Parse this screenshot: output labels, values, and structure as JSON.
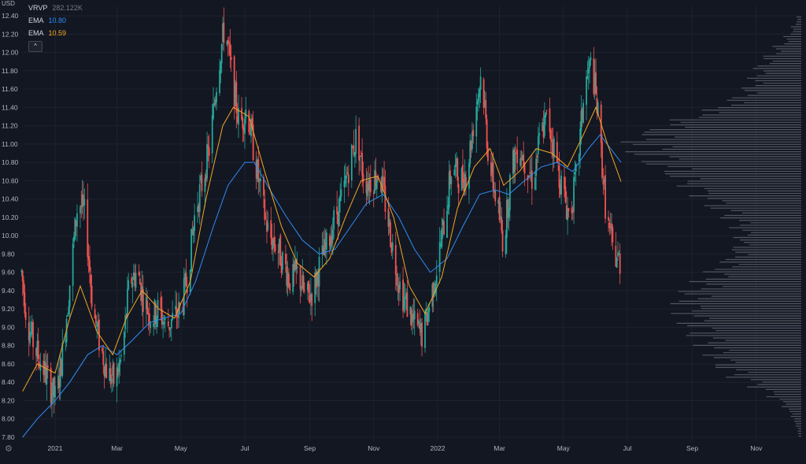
{
  "axis": {
    "currency_label": "USD"
  },
  "legend": {
    "vrvp_label": "VRVP",
    "vrvp_value": "282.122K",
    "ema1_label": "EMA",
    "ema1_value": "10.80",
    "ema2_label": "EMA",
    "ema2_value": "10.59",
    "collapse_glyph": "^"
  },
  "colors": {
    "up": "#26a69a",
    "down": "#ef5350",
    "ema_fast": "#f5a623",
    "ema_slow": "#2f8df5",
    "volume_profile": "#5d606b",
    "background": "#131722"
  },
  "chart_data": {
    "type": "candlestick",
    "title": "",
    "ylim": [
      7.75,
      12.45
    ],
    "y_ticks": [
      "7.80",
      "8.00",
      "8.20",
      "8.40",
      "8.60",
      "8.80",
      "9.00",
      "9.20",
      "9.40",
      "9.60",
      "9.80",
      "10.00",
      "10.20",
      "10.40",
      "10.60",
      "10.80",
      "11.00",
      "11.20",
      "11.40",
      "11.60",
      "11.80",
      "12.00",
      "12.20",
      "12.40"
    ],
    "x_ticks": [
      "2021",
      "Mar",
      "May",
      "Jul",
      "Sep",
      "Nov",
      "2022",
      "Mar",
      "May",
      "Jul",
      "Sep",
      "Nov"
    ],
    "close_path": [
      [
        "2020-11-30",
        9.6
      ],
      [
        "2020-12-05",
        9.1
      ],
      [
        "2020-12-12",
        8.8
      ],
      [
        "2020-12-19",
        8.6
      ],
      [
        "2020-12-26",
        8.4
      ],
      [
        "2021-01-02",
        8.2
      ],
      [
        "2021-01-09",
        8.8
      ],
      [
        "2021-01-16",
        9.6
      ],
      [
        "2021-01-23",
        10.4
      ],
      [
        "2021-01-30",
        10.2
      ],
      [
        "2021-02-06",
        9.2
      ],
      [
        "2021-02-13",
        8.8
      ],
      [
        "2021-02-20",
        8.5
      ],
      [
        "2021-02-27",
        8.4
      ],
      [
        "2021-03-06",
        8.7
      ],
      [
        "2021-03-13",
        9.5
      ],
      [
        "2021-03-20",
        9.6
      ],
      [
        "2021-03-27",
        9.3
      ],
      [
        "2021-04-03",
        9.1
      ],
      [
        "2021-04-10",
        9.2
      ],
      [
        "2021-04-17",
        9.0
      ],
      [
        "2021-04-24",
        9.1
      ],
      [
        "2021-05-01",
        9.2
      ],
      [
        "2021-05-08",
        9.6
      ],
      [
        "2021-05-15",
        10.3
      ],
      [
        "2021-05-22",
        10.6
      ],
      [
        "2021-05-29",
        11.0
      ],
      [
        "2021-06-05",
        11.8
      ],
      [
        "2021-06-12",
        12.3
      ],
      [
        "2021-06-19",
        11.7
      ],
      [
        "2021-06-26",
        11.2
      ],
      [
        "2021-07-03",
        11.4
      ],
      [
        "2021-07-10",
        10.9
      ],
      [
        "2021-07-17",
        10.4
      ],
      [
        "2021-07-24",
        10.0
      ],
      [
        "2021-07-31",
        9.9
      ],
      [
        "2021-08-07",
        9.7
      ],
      [
        "2021-08-14",
        9.5
      ],
      [
        "2021-08-21",
        9.6
      ],
      [
        "2021-08-28",
        9.3
      ],
      [
        "2021-09-04",
        9.4
      ],
      [
        "2021-09-11",
        9.7
      ],
      [
        "2021-09-18",
        9.9
      ],
      [
        "2021-09-25",
        10.2
      ],
      [
        "2021-10-02",
        10.4
      ],
      [
        "2021-10-09",
        10.8
      ],
      [
        "2021-10-16",
        11.1
      ],
      [
        "2021-10-23",
        10.6
      ],
      [
        "2021-10-30",
        10.6
      ],
      [
        "2021-11-06",
        10.7
      ],
      [
        "2021-11-13",
        10.3
      ],
      [
        "2021-11-20",
        9.8
      ],
      [
        "2021-11-27",
        9.4
      ],
      [
        "2021-12-04",
        9.2
      ],
      [
        "2021-12-11",
        9.0
      ],
      [
        "2021-12-18",
        8.9
      ],
      [
        "2021-12-25",
        9.3
      ],
      [
        "2022-01-01",
        9.7
      ],
      [
        "2022-01-08",
        10.2
      ],
      [
        "2022-01-15",
        10.8
      ],
      [
        "2022-01-22",
        10.6
      ],
      [
        "2022-01-29",
        10.7
      ],
      [
        "2022-02-05",
        11.3
      ],
      [
        "2022-02-12",
        11.8
      ],
      [
        "2022-02-19",
        10.8
      ],
      [
        "2022-02-26",
        10.4
      ],
      [
        "2022-03-05",
        9.9
      ],
      [
        "2022-03-12",
        10.7
      ],
      [
        "2022-03-19",
        11.0
      ],
      [
        "2022-03-26",
        10.8
      ],
      [
        "2022-04-02",
        10.6
      ],
      [
        "2022-04-09",
        11.1
      ],
      [
        "2022-04-16",
        11.3
      ],
      [
        "2022-04-23",
        10.9
      ],
      [
        "2022-04-30",
        10.5
      ],
      [
        "2022-05-07",
        10.2
      ],
      [
        "2022-05-14",
        10.7
      ],
      [
        "2022-05-21",
        11.6
      ],
      [
        "2022-05-28",
        11.9
      ],
      [
        "2022-06-04",
        11.2
      ],
      [
        "2022-06-11",
        10.2
      ],
      [
        "2022-06-18",
        9.8
      ],
      [
        "2022-06-25",
        9.7
      ]
    ],
    "series": [
      {
        "name": "EMA",
        "values": [
          [
            "2020-12-01",
            7.8
          ],
          [
            "2020-12-15",
            8.0
          ],
          [
            "2021-01-01",
            8.2
          ],
          [
            "2021-01-15",
            8.4
          ],
          [
            "2021-02-01",
            8.7
          ],
          [
            "2021-02-15",
            8.8
          ],
          [
            "2021-03-01",
            8.7
          ],
          [
            "2021-03-15",
            8.85
          ],
          [
            "2021-04-01",
            9.05
          ],
          [
            "2021-04-15",
            9.1
          ],
          [
            "2021-05-01",
            9.15
          ],
          [
            "2021-05-15",
            9.5
          ],
          [
            "2021-06-01",
            10.1
          ],
          [
            "2021-06-15",
            10.55
          ],
          [
            "2021-07-01",
            10.8
          ],
          [
            "2021-07-10",
            10.8
          ],
          [
            "2021-07-25",
            10.5
          ],
          [
            "2021-08-10",
            10.2
          ],
          [
            "2021-08-25",
            9.95
          ],
          [
            "2021-09-10",
            9.8
          ],
          [
            "2021-09-25",
            9.85
          ],
          [
            "2021-10-10",
            10.1
          ],
          [
            "2021-10-25",
            10.35
          ],
          [
            "2021-11-10",
            10.45
          ],
          [
            "2021-11-25",
            10.2
          ],
          [
            "2021-12-10",
            9.85
          ],
          [
            "2021-12-25",
            9.6
          ],
          [
            "2022-01-10",
            9.75
          ],
          [
            "2022-01-25",
            10.1
          ],
          [
            "2022-02-10",
            10.45
          ],
          [
            "2022-02-25",
            10.5
          ],
          [
            "2022-03-10",
            10.45
          ],
          [
            "2022-03-25",
            10.6
          ],
          [
            "2022-04-10",
            10.75
          ],
          [
            "2022-04-25",
            10.8
          ],
          [
            "2022-05-10",
            10.7
          ],
          [
            "2022-05-25",
            10.95
          ],
          [
            "2022-06-05",
            11.1
          ],
          [
            "2022-06-15",
            10.95
          ],
          [
            "2022-06-25",
            10.8
          ]
        ]
      },
      {
        "name": "EMA",
        "values": [
          [
            "2020-12-01",
            8.3
          ],
          [
            "2020-12-15",
            8.6
          ],
          [
            "2021-01-01",
            8.5
          ],
          [
            "2021-01-15",
            9.1
          ],
          [
            "2021-01-25",
            9.45
          ],
          [
            "2021-02-10",
            8.95
          ],
          [
            "2021-02-25",
            8.7
          ],
          [
            "2021-03-10",
            9.1
          ],
          [
            "2021-03-25",
            9.4
          ],
          [
            "2021-04-10",
            9.2
          ],
          [
            "2021-04-25",
            9.1
          ],
          [
            "2021-05-10",
            9.5
          ],
          [
            "2021-05-25",
            10.4
          ],
          [
            "2021-06-10",
            11.2
          ],
          [
            "2021-06-20",
            11.4
          ],
          [
            "2021-07-05",
            11.3
          ],
          [
            "2021-07-20",
            10.7
          ],
          [
            "2021-08-05",
            10.1
          ],
          [
            "2021-08-20",
            9.7
          ],
          [
            "2021-09-05",
            9.55
          ],
          [
            "2021-09-20",
            9.75
          ],
          [
            "2021-10-05",
            10.2
          ],
          [
            "2021-10-20",
            10.6
          ],
          [
            "2021-11-05",
            10.65
          ],
          [
            "2021-11-20",
            10.2
          ],
          [
            "2021-12-05",
            9.45
          ],
          [
            "2021-12-20",
            9.15
          ],
          [
            "2022-01-05",
            9.55
          ],
          [
            "2022-01-20",
            10.3
          ],
          [
            "2022-02-05",
            10.75
          ],
          [
            "2022-02-20",
            10.95
          ],
          [
            "2022-03-05",
            10.55
          ],
          [
            "2022-03-20",
            10.7
          ],
          [
            "2022-04-05",
            10.95
          ],
          [
            "2022-04-20",
            10.9
          ],
          [
            "2022-05-05",
            10.75
          ],
          [
            "2022-05-20",
            11.1
          ],
          [
            "2022-06-01",
            11.4
          ],
          [
            "2022-06-12",
            11.0
          ],
          [
            "2022-06-25",
            10.59
          ]
        ]
      }
    ],
    "volume_profile": {
      "price_range": [
        7.8,
        12.4
      ],
      "relative_volumes": [
        0.02,
        0.04,
        0.07,
        0.12,
        0.2,
        0.3,
        0.42,
        0.5,
        0.55,
        0.6,
        0.66,
        0.7,
        0.72,
        0.74,
        0.7,
        0.62,
        0.55,
        0.48,
        0.42,
        0.4,
        0.38,
        0.4,
        0.46,
        0.55,
        0.62,
        0.7,
        0.78,
        0.86,
        0.93,
        0.98,
        1.0,
        0.9,
        0.74,
        0.55,
        0.42,
        0.34,
        0.3,
        0.27,
        0.22,
        0.16,
        0.1,
        0.06,
        0.03
      ]
    }
  }
}
